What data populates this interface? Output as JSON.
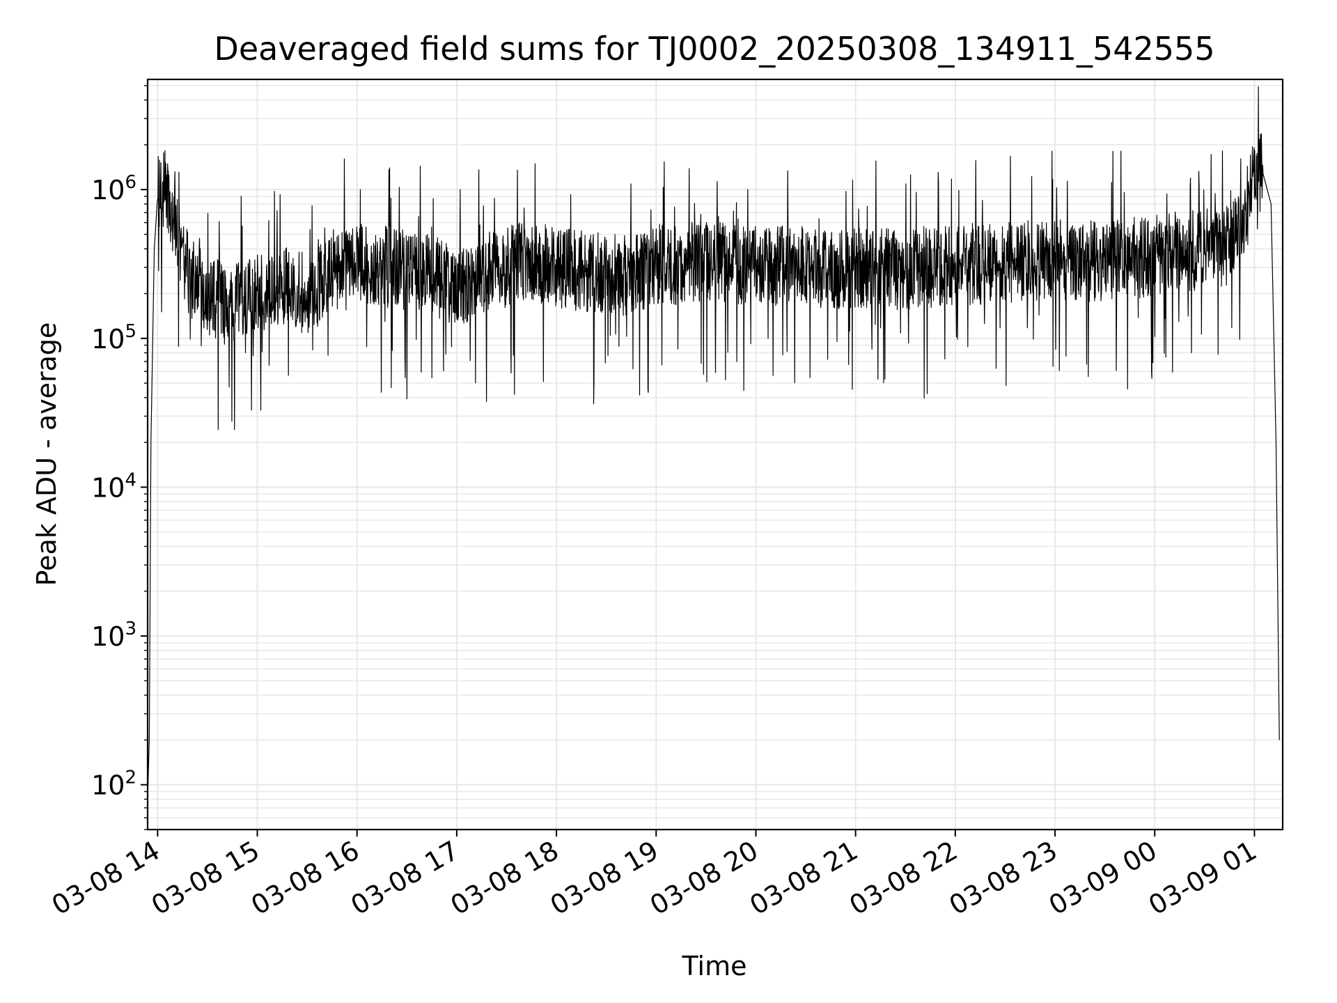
{
  "chart_data": {
    "type": "line",
    "title": "Deaveraged field sums for TJ0002_20250308_134911_542555",
    "xlabel": "Time",
    "ylabel": "Peak ADU - average",
    "y_scale": "log",
    "ylim": [
      50,
      5500000
    ],
    "xlim": [
      "2025-03-08 13:54",
      "2025-03-09 01:17"
    ],
    "grid": true,
    "legend": "none",
    "line_color": "#000000",
    "grid_color": "#e6e6e6",
    "x_ticks": [
      "03-08 14",
      "03-08 15",
      "03-08 16",
      "03-08 17",
      "03-08 18",
      "03-08 19",
      "03-08 20",
      "03-08 21",
      "03-08 22",
      "03-08 23",
      "03-09 00",
      "03-09 01"
    ],
    "y_ticks": [
      {
        "value": 100,
        "base": "10",
        "exp": "2"
      },
      {
        "value": 1000,
        "base": "10",
        "exp": "3"
      },
      {
        "value": 10000,
        "base": "10",
        "exp": "4"
      },
      {
        "value": 100000,
        "base": "10",
        "exp": "5"
      },
      {
        "value": 1000000,
        "base": "10",
        "exp": "6"
      }
    ],
    "series": [
      {
        "x": [
          "2025-03-08 13:54",
          "2025-03-08 13:55",
          "2025-03-08 13:56",
          "2025-03-08 13:58",
          "2025-03-08 14:00",
          "2025-03-08 14:05",
          "2025-03-08 14:10",
          "2025-03-08 14:15",
          "2025-03-08 14:20",
          "2025-03-08 14:30",
          "2025-03-08 14:40",
          "2025-03-08 14:50",
          "2025-03-08 15:00",
          "2025-03-08 15:15",
          "2025-03-08 15:30",
          "2025-03-08 15:45",
          "2025-03-08 16:00",
          "2025-03-08 16:20",
          "2025-03-08 16:40",
          "2025-03-08 17:00",
          "2025-03-08 17:20",
          "2025-03-08 17:40",
          "2025-03-08 18:00",
          "2025-03-08 18:20",
          "2025-03-08 18:40",
          "2025-03-08 19:00",
          "2025-03-08 19:20",
          "2025-03-08 19:40",
          "2025-03-08 20:00",
          "2025-03-08 20:20",
          "2025-03-08 20:40",
          "2025-03-08 21:00",
          "2025-03-08 21:20",
          "2025-03-08 21:40",
          "2025-03-08 22:00",
          "2025-03-08 22:20",
          "2025-03-08 22:40",
          "2025-03-08 23:00",
          "2025-03-08 23:20",
          "2025-03-08 23:40",
          "2025-03-09 00:00",
          "2025-03-09 00:15",
          "2025-03-09 00:30",
          "2025-03-09 00:45",
          "2025-03-09 00:55",
          "2025-03-09 01:00",
          "2025-03-09 01:05",
          "2025-03-09 01:10",
          "2025-03-09 01:13",
          "2025-03-09 01:15"
        ],
        "y": [
          80,
          200,
          20000,
          400000,
          900000,
          1100000,
          600000,
          350000,
          250000,
          200000,
          170000,
          180000,
          200000,
          220000,
          200000,
          260000,
          320000,
          300000,
          280000,
          220000,
          280000,
          330000,
          300000,
          280000,
          260000,
          310000,
          320000,
          330000,
          300000,
          310000,
          290000,
          300000,
          290000,
          300000,
          310000,
          320000,
          330000,
          340000,
          330000,
          340000,
          360000,
          380000,
          400000,
          420000,
          700000,
          1400000,
          1300000,
          800000,
          20000,
          200
        ]
      }
    ]
  }
}
